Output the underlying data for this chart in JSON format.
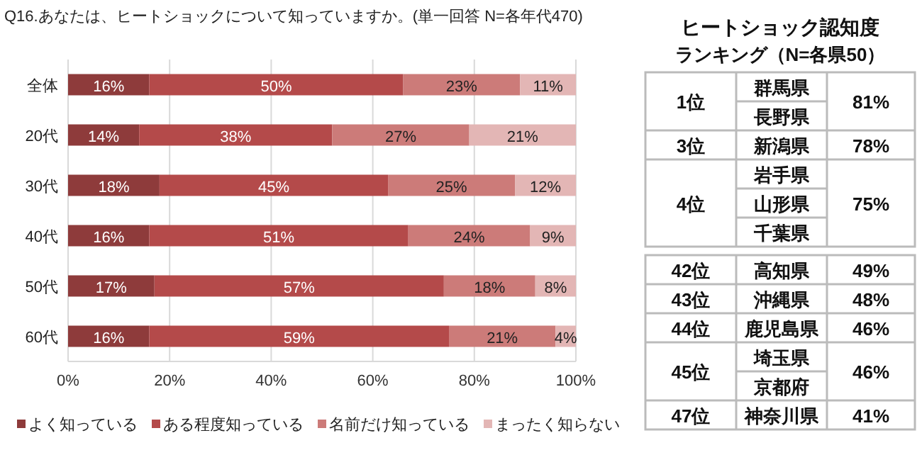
{
  "chart_data": [
    {
      "type": "bar",
      "orientation": "horizontal",
      "stacked": true,
      "title": "Q16.あなたは、ヒートショックについて知っていますか。(単一回答 N=各年代470)",
      "categories": [
        "全体",
        "20代",
        "30代",
        "40代",
        "50代",
        "60代"
      ],
      "series": [
        {
          "name": "よく知っている",
          "color": "#8e3b3b",
          "values": [
            16,
            14,
            18,
            16,
            17,
            16
          ],
          "value_labels": [
            "16%",
            "14%",
            "18%",
            "16%",
            "17%",
            "16%"
          ]
        },
        {
          "name": "ある程度知っている",
          "color": "#b44a4a",
          "values": [
            50,
            38,
            45,
            51,
            57,
            59
          ],
          "value_labels": [
            "50%",
            "38%",
            "45%",
            "51%",
            "57%",
            "59%"
          ]
        },
        {
          "name": "名前だけ知っている",
          "color": "#cc7b79",
          "values": [
            23,
            27,
            25,
            24,
            18,
            21
          ],
          "value_labels": [
            "23%",
            "27%",
            "25%",
            "24%",
            "18%",
            "21%"
          ]
        },
        {
          "name": "まったく知らない",
          "color": "#e3b6b5",
          "values": [
            11,
            21,
            12,
            9,
            8,
            4
          ],
          "value_labels": [
            "11%",
            "21%",
            "12%",
            "9%",
            "8%",
            "4%"
          ]
        }
      ],
      "xlim": [
        0,
        100
      ],
      "xticks": [
        {
          "value": 0,
          "label": "0%"
        },
        {
          "value": 20,
          "label": "20%"
        },
        {
          "value": 40,
          "label": "40%"
        },
        {
          "value": 60,
          "label": "60%"
        },
        {
          "value": 80,
          "label": "80%"
        },
        {
          "value": 100,
          "label": "100%"
        }
      ],
      "grid": "x",
      "legend": "bottom"
    },
    {
      "type": "other",
      "title": "ヒートショック認知度",
      "subtitle": "ランキング（N=各県50）",
      "categories": [
        "群馬県",
        "長野県",
        "新潟県",
        "岩手県",
        "山形県",
        "千葉県"
      ],
      "value_labels": [
        "81%",
        null,
        "78%",
        "75%",
        null,
        null
      ],
      "annotations": [
        "1位",
        "3位",
        "4位"
      ]
    },
    {
      "type": "other",
      "categories": [
        "高知県",
        "沖縄県",
        "鹿児島県",
        "埼玉県",
        "京都府",
        "神奈川県"
      ],
      "value_labels": [
        "49%",
        "48%",
        "46%",
        "46%",
        null,
        "41%"
      ],
      "annotations": [
        "42位",
        "43位",
        "44位",
        "45位",
        "47位"
      ]
    }
  ]
}
